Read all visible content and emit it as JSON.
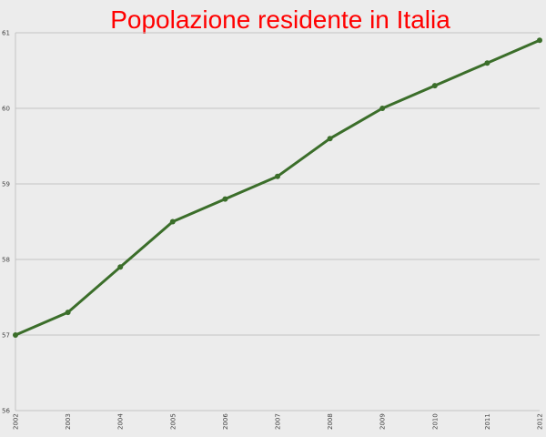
{
  "chart_data": {
    "type": "line",
    "title": "Popolazione residente in Italia",
    "xlabel": "",
    "ylabel": "",
    "x": [
      "2002",
      "2003",
      "2004",
      "2005",
      "2006",
      "2007",
      "2008",
      "2009",
      "2010",
      "2011",
      "2012"
    ],
    "series": [
      {
        "values": [
          57.0,
          57.3,
          57.9,
          58.5,
          58.8,
          59.1,
          59.6,
          60.0,
          60.3,
          60.6,
          60.9
        ]
      }
    ],
    "ylim": [
      56,
      61
    ],
    "yticks": [
      "56",
      "57",
      "58",
      "59",
      "60",
      "61"
    ],
    "grid": true,
    "legend": "none"
  },
  "colors": {
    "title": "#ff0000",
    "line": "#3b6e2a",
    "marker": "#3b6e2a",
    "grid": "#c4c4c4",
    "background": "#ececec",
    "tick_text": "#444444"
  }
}
